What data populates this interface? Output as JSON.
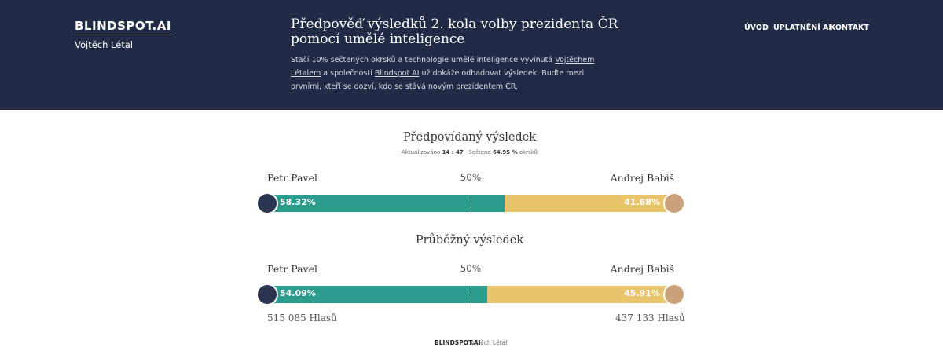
{
  "header": {
    "logo": "BLINDSPOT.AI",
    "author": "Vojtěch Létal",
    "title": "Předpověď výsledků 2. kola volby prezidenta ČR pomocí umělé inteligence",
    "intro": {
      "text1": "Stačí 10% sečtených okrsků a technologie umělé inteligence vyvinutá",
      "link1": "Vojtěchem Létalem",
      "text2": "a společností",
      "link2": "Blindspot AI",
      "text3": "už dokáže odhadovat výsledek. Buďte mezi prvními, kteří se dozví, kdo se stává novým prezidentem ČR."
    },
    "nav": [
      "ÚVOD",
      "UPLATNĚNÍ AI",
      "KONTAKT"
    ]
  },
  "predicted": {
    "title": "Předpovídaný výsledek",
    "updated_label": "Aktualizováno",
    "updated_time": "14 : 47",
    "counted_label": "Sečteno",
    "counted": "64.95 %",
    "counted_suffix": "okrsků",
    "midpoint": {
      "value": 50,
      "label": "50%"
    },
    "candidates": [
      {
        "name": "Petr Pavel",
        "color": "#2a9d8f",
        "value": 58.32,
        "label": "58.32%"
      },
      {
        "name": "Andrej Babiš",
        "color": "#e9c46a",
        "value": 41.68,
        "label": "41.68%"
      }
    ]
  },
  "current": {
    "title": "Průběžný výsledek",
    "midpoint": {
      "value": 50,
      "label": "50%"
    },
    "candidates": [
      {
        "name": "Petr Pavel",
        "color": "#2a9d8f",
        "value": 54.09,
        "label": "54.09%",
        "votes": "515 085 Hlasů"
      },
      {
        "name": "Andrej Babiš",
        "color": "#e9c46a",
        "value": 45.91,
        "label": "45.91%",
        "votes": "437 133 Hlasů"
      }
    ]
  },
  "footer": {
    "logo": "BLINDSPOT.AI",
    "author": "Vojtěch Létal"
  }
}
